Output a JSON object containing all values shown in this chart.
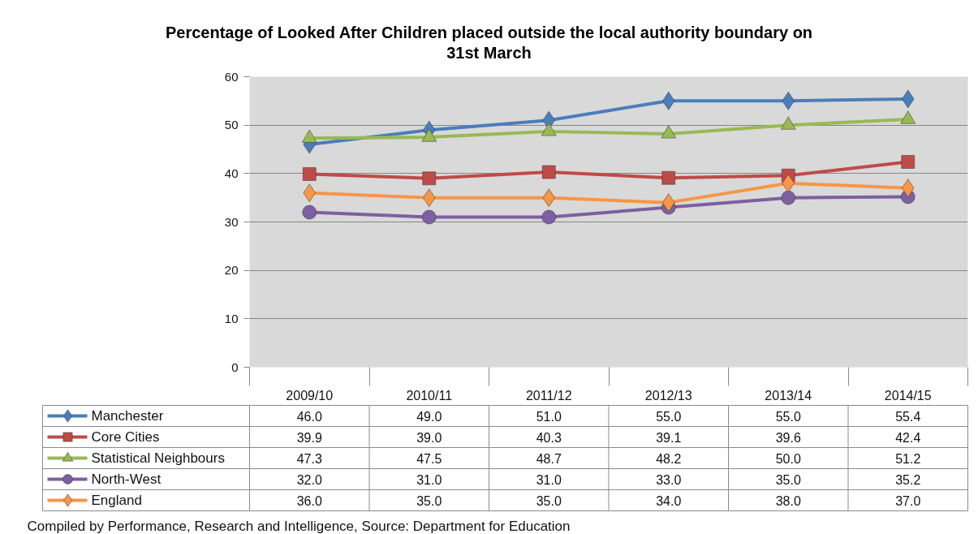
{
  "chart_data": {
    "type": "line",
    "title": "Percentage of Looked After Children placed outside the local authority boundary on 31st March",
    "categories": [
      "2009/10",
      "2010/11",
      "2011/12",
      "2012/13",
      "2013/14",
      "2014/15"
    ],
    "series": [
      {
        "name": "Manchester",
        "color": "#4a7ebb",
        "marker": "diamond",
        "values": [
          46.0,
          49.0,
          51.0,
          55.0,
          55.0,
          55.4
        ],
        "value_labels": [
          "46.0",
          "49.0",
          "51.0",
          "55.0",
          "55.0",
          "55.4"
        ]
      },
      {
        "name": "Core Cities",
        "color": "#be4b48",
        "marker": "square",
        "values": [
          39.9,
          39.0,
          40.3,
          39.1,
          39.6,
          42.4
        ],
        "value_labels": [
          "39.9",
          "39.0",
          "40.3",
          "39.1",
          "39.6",
          "42.4"
        ]
      },
      {
        "name": "Statistical Neighbours",
        "color": "#98b954",
        "marker": "triangle",
        "values": [
          47.3,
          47.5,
          48.7,
          48.2,
          50.0,
          51.2
        ],
        "value_labels": [
          "47.3",
          "47.5",
          "48.7",
          "48.2",
          "50.0",
          "51.2"
        ]
      },
      {
        "name": "North-West",
        "color": "#7d60a0",
        "marker": "circle",
        "values": [
          32.0,
          31.0,
          31.0,
          33.0,
          35.0,
          35.2
        ],
        "value_labels": [
          "32.0",
          "31.0",
          "31.0",
          "33.0",
          "35.0",
          "35.2"
        ]
      },
      {
        "name": "England",
        "color": "#f79646",
        "marker": "diamond",
        "values": [
          36.0,
          35.0,
          35.0,
          34.0,
          38.0,
          37.0
        ],
        "value_labels": [
          "36.0",
          "35.0",
          "35.0",
          "34.0",
          "38.0",
          "37.0"
        ]
      }
    ],
    "ylim": [
      0,
      60
    ],
    "yticks": [
      0,
      10,
      20,
      30,
      40,
      50,
      60
    ],
    "grid": "y",
    "legend": "bottom",
    "line_style": "solid",
    "annotations": [
      "Compiled by Performance, Research and Intelligence, Source: Department for Education"
    ]
  }
}
